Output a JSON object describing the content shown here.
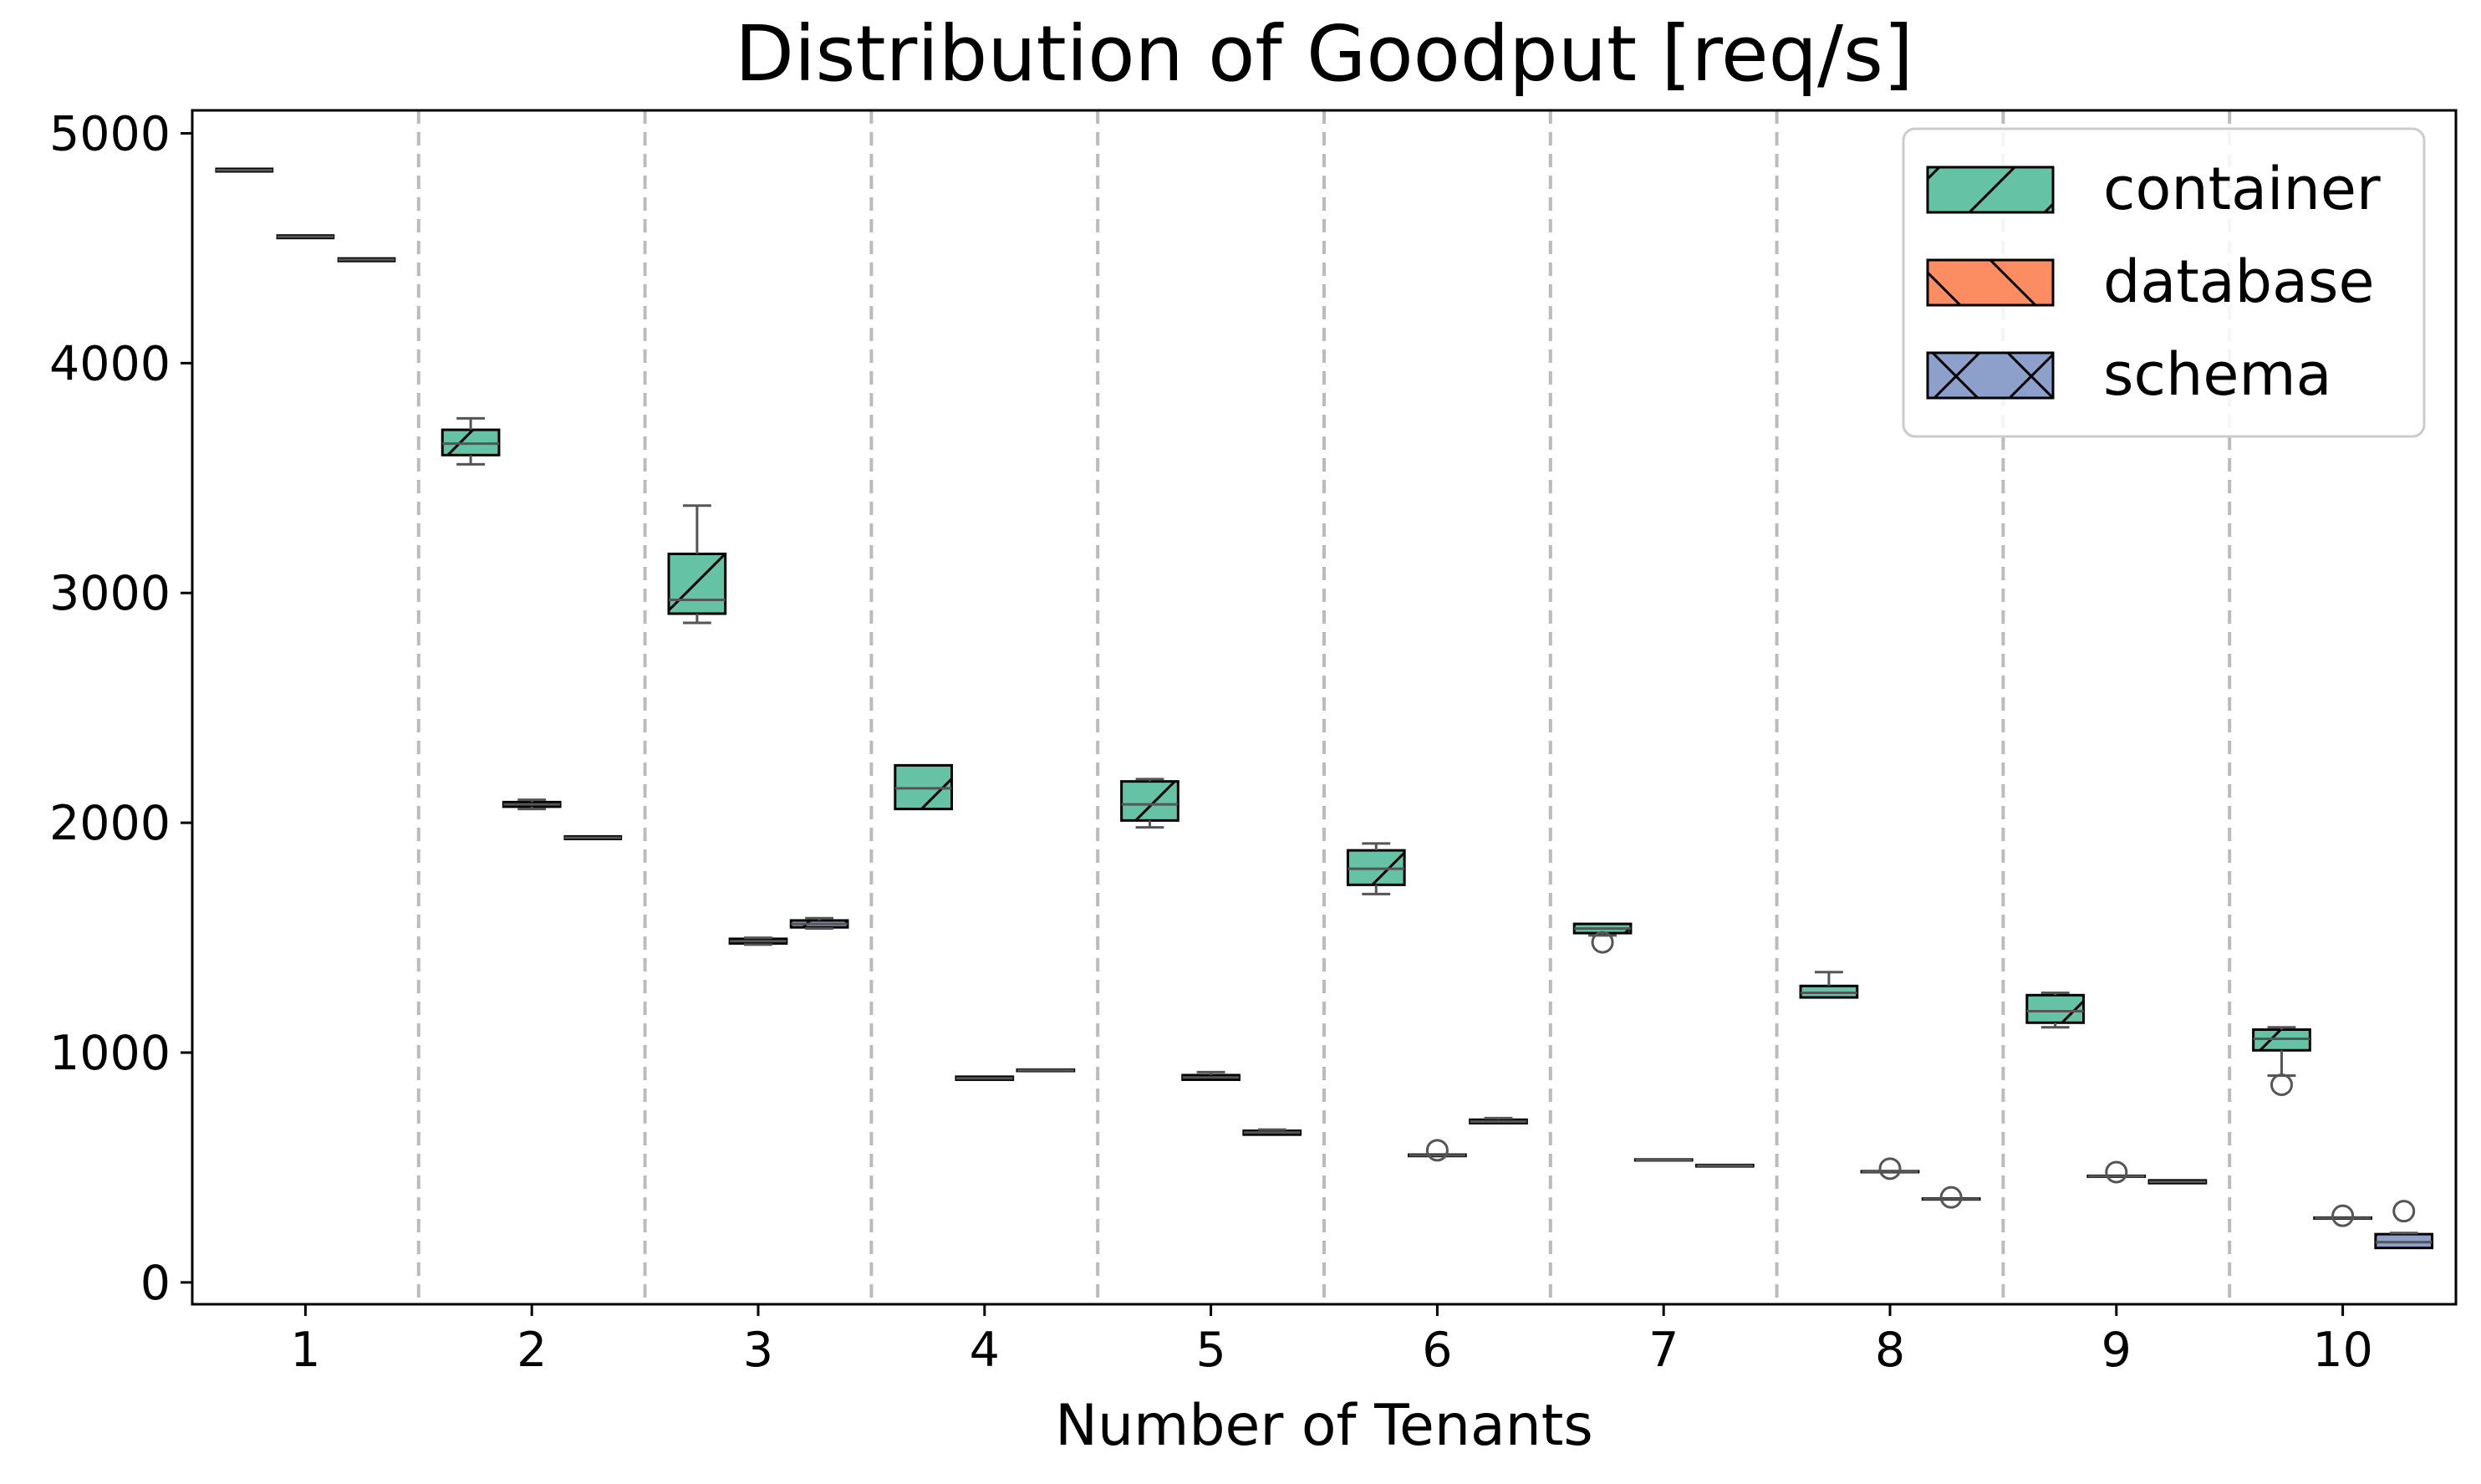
{
  "chart_data": {
    "type": "box",
    "title": "Distribution of Goodput [req/s]",
    "xlabel": "Number of Tenants",
    "ylabel": "",
    "categories": [
      "1",
      "2",
      "3",
      "4",
      "5",
      "6",
      "7",
      "8",
      "9",
      "10"
    ],
    "y_ticks": [
      0,
      1000,
      2000,
      3000,
      4000,
      5000
    ],
    "ylim": [
      -95,
      5100
    ],
    "grid": "vertical separators between groups (dashed)",
    "legend_position": "top-right",
    "series": [
      {
        "name": "container",
        "color": "#66c2a5",
        "hatch": "forward-slash",
        "boxes": [
          {
            "min": 4840,
            "q1": 4840,
            "median": 4840,
            "q3": 4840,
            "max": 4840,
            "outliers": []
          },
          {
            "min": 3560,
            "q1": 3600,
            "median": 3650,
            "q3": 3710,
            "max": 3760,
            "outliers": []
          },
          {
            "min": 2870,
            "q1": 2910,
            "median": 2970,
            "q3": 3170,
            "max": 3380,
            "outliers": []
          },
          {
            "min": 2060,
            "q1": 2060,
            "median": 2150,
            "q3": 2250,
            "max": 2250,
            "outliers": []
          },
          {
            "min": 1980,
            "q1": 2010,
            "median": 2080,
            "q3": 2180,
            "max": 2190,
            "outliers": []
          },
          {
            "min": 1690,
            "q1": 1730,
            "median": 1800,
            "q3": 1880,
            "max": 1910,
            "outliers": []
          },
          {
            "min": 1510,
            "q1": 1520,
            "median": 1540,
            "q3": 1560,
            "max": 1560,
            "outliers": [
              1480
            ]
          },
          {
            "min": 1240,
            "q1": 1240,
            "median": 1260,
            "q3": 1290,
            "max": 1350,
            "outliers": []
          },
          {
            "min": 1110,
            "q1": 1130,
            "median": 1180,
            "q3": 1250,
            "max": 1260,
            "outliers": []
          },
          {
            "min": 900,
            "q1": 1010,
            "median": 1060,
            "q3": 1100,
            "max": 1110,
            "outliers": [
              860
            ]
          }
        ]
      },
      {
        "name": "database",
        "color": "#fc8d62",
        "hatch": "back-slash",
        "boxes": [
          {
            "min": 4550,
            "q1": 4550,
            "median": 4550,
            "q3": 4550,
            "max": 4550,
            "outliers": []
          },
          {
            "min": 2060,
            "q1": 2070,
            "median": 2080,
            "q3": 2090,
            "max": 2100,
            "outliers": []
          },
          {
            "min": 1470,
            "q1": 1475,
            "median": 1485,
            "q3": 1495,
            "max": 1500,
            "outliers": []
          },
          {
            "min": 880,
            "q1": 882,
            "median": 888,
            "q3": 895,
            "max": 898,
            "outliers": []
          },
          {
            "min": 880,
            "q1": 882,
            "median": 892,
            "q3": 902,
            "max": 915,
            "outliers": []
          },
          {
            "min": 548,
            "q1": 550,
            "median": 553,
            "q3": 556,
            "max": 558,
            "outliers": [
              575
            ]
          },
          {
            "min": 530,
            "q1": 531,
            "median": 533,
            "q3": 535,
            "max": 536,
            "outliers": []
          },
          {
            "min": 478,
            "q1": 480,
            "median": 482,
            "q3": 484,
            "max": 486,
            "outliers": [
              495
            ]
          },
          {
            "min": 458,
            "q1": 460,
            "median": 462,
            "q3": 464,
            "max": 466,
            "outliers": [
              480
            ]
          },
          {
            "min": 276,
            "q1": 278,
            "median": 280,
            "q3": 282,
            "max": 284,
            "outliers": [
              290
            ]
          }
        ]
      },
      {
        "name": "schema",
        "color": "#8da0cb",
        "hatch": "cross",
        "boxes": [
          {
            "min": 4450,
            "q1": 4450,
            "median": 4450,
            "q3": 4450,
            "max": 4450,
            "outliers": []
          },
          {
            "min": 1935,
            "q1": 1935,
            "median": 1935,
            "q3": 1935,
            "max": 1935,
            "outliers": []
          },
          {
            "min": 1540,
            "q1": 1545,
            "median": 1560,
            "q3": 1575,
            "max": 1585,
            "outliers": []
          },
          {
            "min": 918,
            "q1": 920,
            "median": 923,
            "q3": 926,
            "max": 928,
            "outliers": []
          },
          {
            "min": 640,
            "q1": 643,
            "median": 652,
            "q3": 660,
            "max": 665,
            "outliers": []
          },
          {
            "min": 690,
            "q1": 693,
            "median": 700,
            "q3": 708,
            "max": 715,
            "outliers": []
          },
          {
            "min": 503,
            "q1": 505,
            "median": 508,
            "q3": 511,
            "max": 513,
            "outliers": []
          },
          {
            "min": 360,
            "q1": 361,
            "median": 363,
            "q3": 365,
            "max": 366,
            "outliers": [
              370
            ]
          },
          {
            "min": 430,
            "q1": 432,
            "median": 438,
            "q3": 444,
            "max": 447,
            "outliers": []
          },
          {
            "min": 150,
            "q1": 150,
            "median": 175,
            "q3": 210,
            "max": 215,
            "outliers": [
              310
            ]
          }
        ]
      }
    ]
  }
}
